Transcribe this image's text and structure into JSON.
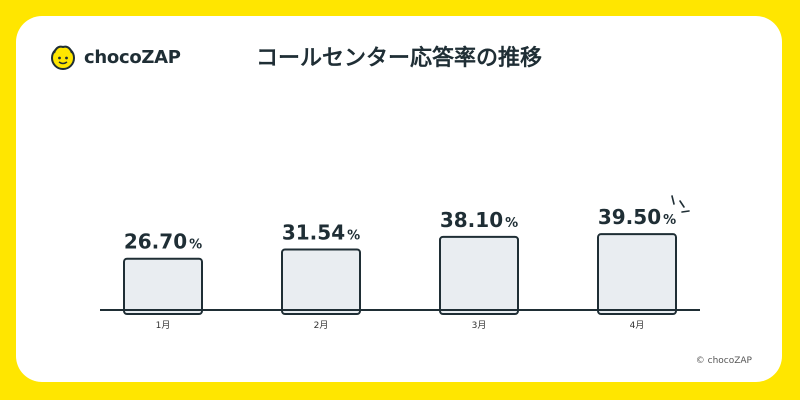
{
  "brand": {
    "name": "chocoZAP",
    "logo_icon": "choco-mascot-icon"
  },
  "header": {
    "title": "コールセンター応答率の推移"
  },
  "footer": {
    "copyright": "© chocoZAP"
  },
  "colors": {
    "background": "#FFE600",
    "card": "#FFFFFF",
    "bar_fill": "#E9EDF1",
    "bar_stroke": "#1F2E35",
    "text": "#1F2E35"
  },
  "chart_data": {
    "type": "bar",
    "title": "コールセンター応答率の推移",
    "categories": [
      "1月",
      "2月",
      "3月",
      "4月"
    ],
    "values": [
      26.7,
      31.54,
      38.1,
      39.5
    ],
    "value_labels": [
      "26.70",
      "31.54",
      "38.10",
      "39.50"
    ],
    "unit": "%",
    "ylim": [
      0,
      100
    ],
    "grid": false,
    "legend": "none",
    "xlabel": "",
    "ylabel": ""
  }
}
